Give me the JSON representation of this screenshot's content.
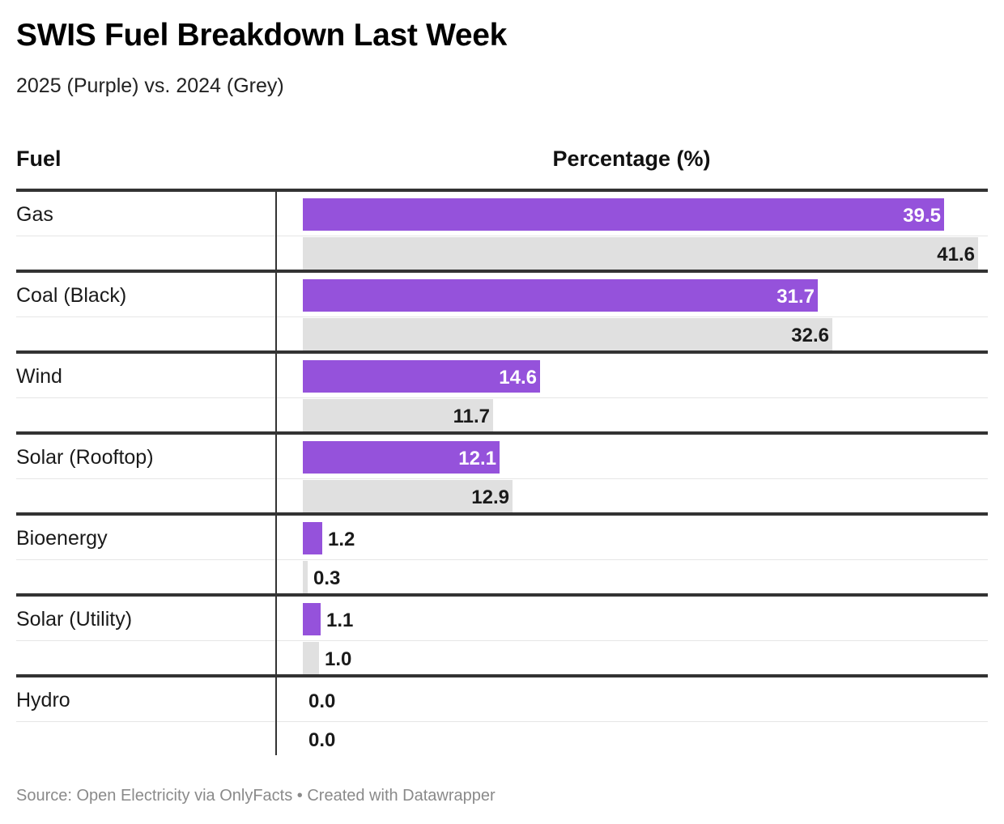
{
  "title": "SWIS Fuel Breakdown Last Week",
  "subtitle": "2025 (Purple) vs. 2024 (Grey)",
  "headers": {
    "fuel": "Fuel",
    "percentage": "Percentage (%)"
  },
  "source": "Source: Open Electricity via OnlyFacts • Created with Datawrapper",
  "colors": {
    "series_2025": "#9552db",
    "series_2024": "#e0e0e0",
    "rule": "#333333"
  },
  "chart_data": {
    "type": "bar",
    "orientation": "horizontal",
    "title": "SWIS Fuel Breakdown Last Week",
    "subtitle": "2025 (Purple) vs. 2024 (Grey)",
    "xlabel": "Percentage (%)",
    "ylabel": "Fuel",
    "xlim": [
      0,
      41.6
    ],
    "grid": false,
    "categories": [
      "Gas",
      "Coal (Black)",
      "Wind",
      "Solar (Rooftop)",
      "Bioenergy",
      "Solar (Utility)",
      "Hydro"
    ],
    "series": [
      {
        "name": "2025",
        "color": "#9552db",
        "values": [
          39.5,
          31.7,
          14.6,
          12.1,
          1.2,
          1.1,
          0.0
        ]
      },
      {
        "name": "2024",
        "color": "#e0e0e0",
        "values": [
          41.6,
          32.6,
          11.7,
          12.9,
          0.3,
          1.0,
          0.0
        ]
      }
    ]
  }
}
